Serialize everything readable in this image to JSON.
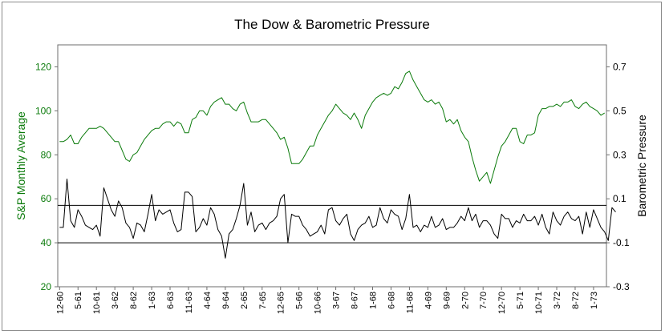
{
  "chart_data": {
    "type": "line",
    "title": "The Dow & Barometric Pressure",
    "ylabel_left": "S&P Monthly Average",
    "ylabel_right": "Barometric Pressure",
    "ylim_left": [
      20,
      130
    ],
    "ylim_right": [
      -0.3,
      0.8
    ],
    "yticks_left": [
      "20",
      "40",
      "60",
      "80",
      "100",
      "120"
    ],
    "yticks_right": [
      "-0.3",
      "-0.1",
      "0.1",
      "0.3",
      "0.5",
      "0.7"
    ],
    "reference_lines_right": [
      0.07,
      -0.1
    ],
    "colors": {
      "sp": "#0a7a0a",
      "pressure": "#000000"
    },
    "x_tick_labels": [
      "12-60",
      "5-61",
      "10-61",
      "3-62",
      "8-62",
      "1-63",
      "6-63",
      "11-63",
      "4-64",
      "9-64",
      "2-65",
      "7-65",
      "12-65",
      "5-66",
      "10-66",
      "3-67",
      "8-67",
      "1-68",
      "6-68",
      "11-68",
      "4-69",
      "9-69",
      "2-70",
      "7-70",
      "12-70",
      "5-71",
      "10-71",
      "3-72",
      "8-72",
      "1-73"
    ],
    "series": [
      {
        "name": "S&P Monthly Average",
        "axis": "left",
        "values": [
          86,
          86,
          87,
          89,
          85,
          85,
          88,
          90,
          92,
          92,
          92,
          93,
          92,
          90,
          88,
          86,
          86,
          82,
          78,
          77,
          80,
          81,
          84,
          87,
          89,
          91,
          92,
          92,
          94,
          95,
          95,
          93,
          95,
          94,
          90,
          90,
          96,
          97,
          100,
          100,
          98,
          102,
          104,
          105,
          106,
          103,
          103,
          101,
          100,
          103,
          104,
          99,
          95,
          95,
          95,
          96,
          96,
          94,
          92,
          90,
          87,
          88,
          83,
          76,
          76,
          76,
          78,
          81,
          84,
          84,
          89,
          92,
          95,
          98,
          100,
          103,
          101,
          99,
          98,
          96,
          99,
          96,
          92,
          98,
          101,
          104,
          106,
          107,
          108,
          107,
          108,
          111,
          110,
          113,
          117,
          118,
          114,
          111,
          108,
          105,
          104,
          105,
          103,
          104,
          101,
          95,
          96,
          94,
          96,
          91,
          88,
          86,
          79,
          73,
          68,
          70,
          72,
          67,
          73,
          79,
          84,
          86,
          89,
          92,
          92,
          86,
          85,
          89,
          89,
          90,
          98,
          101,
          101,
          102,
          102,
          103,
          102,
          104,
          104,
          105,
          102,
          101,
          103,
          104,
          102,
          101,
          100,
          98,
          99
        ]
      },
      {
        "name": "Barometric Pressure",
        "axis": "right",
        "values": [
          -0.03,
          -0.03,
          0.19,
          0.0,
          -0.03,
          0.05,
          0.02,
          -0.02,
          -0.03,
          -0.04,
          -0.02,
          -0.07,
          0.15,
          0.1,
          0.05,
          0.02,
          0.09,
          0.06,
          -0.01,
          -0.03,
          -0.08,
          -0.01,
          -0.02,
          -0.05,
          0.03,
          0.12,
          0.0,
          0.05,
          0.03,
          0.04,
          0.05,
          -0.01,
          -0.05,
          -0.04,
          0.13,
          0.13,
          0.11,
          -0.05,
          -0.03,
          0.01,
          -0.02,
          0.06,
          0.03,
          -0.04,
          -0.07,
          -0.17,
          -0.06,
          -0.04,
          0.01,
          0.07,
          0.17,
          -0.02,
          0.04,
          -0.05,
          -0.02,
          -0.01,
          -0.04,
          -0.01,
          0.0,
          0.02,
          0.1,
          0.12,
          -0.1,
          0.03,
          0.02,
          0.02,
          -0.02,
          -0.04,
          -0.07,
          -0.06,
          -0.05,
          -0.02,
          -0.06,
          0.05,
          0.06,
          0.0,
          -0.02,
          0.01,
          0.03,
          -0.06,
          -0.09,
          -0.04,
          -0.02,
          -0.01,
          0.02,
          -0.03,
          -0.02,
          0.06,
          0.01,
          -0.01,
          0.05,
          0.03,
          0.02,
          -0.04,
          0.01,
          0.12,
          -0.03,
          -0.02,
          -0.05,
          -0.02,
          -0.03,
          0.02,
          -0.03,
          -0.02,
          0.01,
          -0.04,
          -0.03,
          -0.03,
          -0.01,
          0.02,
          0.0,
          0.06,
          0.0,
          0.03,
          -0.03,
          0.0,
          0.0,
          -0.02,
          -0.06,
          -0.08,
          0.03,
          0.01,
          0.01,
          -0.03,
          0.0,
          -0.01,
          0.03,
          0.0,
          0.0,
          0.02,
          -0.02,
          0.03,
          -0.03,
          -0.06,
          0.04,
          0.0,
          -0.02,
          0.02,
          0.04,
          0.01,
          0.0,
          0.02,
          -0.06,
          0.04,
          -0.03,
          0.05,
          0.01,
          -0.03,
          -0.05,
          -0.09,
          0.06,
          0.04
        ]
      }
    ],
    "grid": false,
    "legend": "none"
  }
}
